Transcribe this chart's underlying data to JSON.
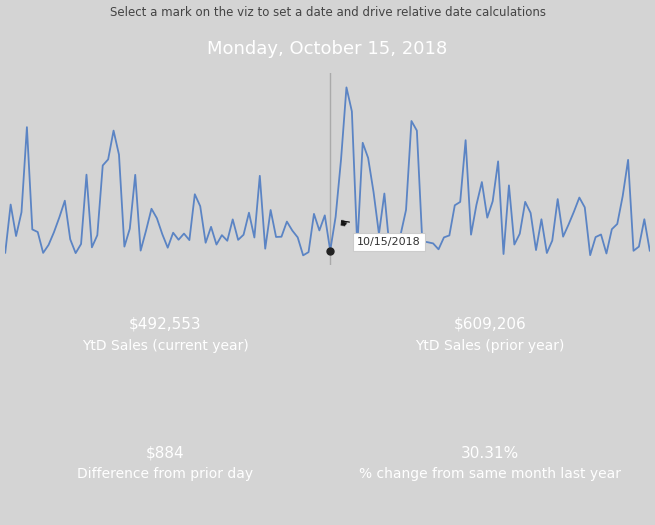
{
  "title_text": "Select a mark on the viz to set a date and drive relative date calculations",
  "header_text": "Monday, October 15, 2018",
  "header_bg": "#b3b3b3",
  "chart_bg": "#ffffff",
  "outer_bg": "#d4d4d4",
  "line_color": "#5b84c4",
  "line_width": 1.3,
  "vline_color": "#aaaaaa",
  "tooltip_text": "10/15/2018",
  "dot_color": "#333333",
  "kpi_bg_gray": "#b3b3b3",
  "kpi_bg_green": "#5c9e52",
  "kpi1_value": "$492,553",
  "kpi1_label": "YtD Sales (current year)",
  "kpi2_value": "$609,206",
  "kpi2_label": "YtD Sales (prior year)",
  "kpi3_value": "$884",
  "kpi3_label": "Difference from prior day",
  "kpi4_value": "30.31%",
  "kpi4_label": "% change from same month last year",
  "kpi_value_fontsize": 11,
  "kpi_label_fontsize": 10,
  "title_fontsize": 8.5,
  "header_fontsize": 13
}
